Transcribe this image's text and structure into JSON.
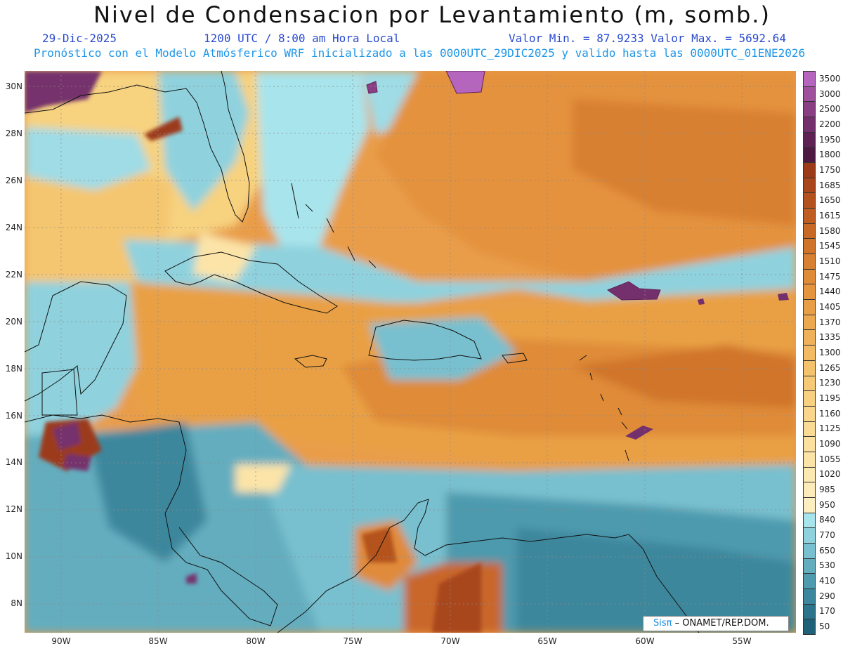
{
  "header": {
    "title": "Nivel de Condensacion por Levantamiento (m, somb.)",
    "date": "29-Dic-2025",
    "time": "1200 UTC / 8:00 am Hora Local",
    "min_max": "Valor Min. = 87.9233  Valor Max. = 5692.64",
    "model_info": "Pronóstico con el Modelo Atmósferico WRF inicializado a las 0000UTC_29DIC2025 y valido hasta las  0000UTC_01ENE2026"
  },
  "axes": {
    "lat_labels": [
      "30N",
      "28N",
      "26N",
      "24N",
      "22N",
      "20N",
      "18N",
      "16N",
      "14N",
      "12N",
      "10N",
      "8N"
    ],
    "lon_labels": [
      "90W",
      "85W",
      "80W",
      "75W",
      "70W",
      "65W",
      "60W",
      "55W"
    ]
  },
  "legend": {
    "labels": [
      "3500",
      "3000",
      "2500",
      "2200",
      "1950",
      "1800",
      "1750",
      "1685",
      "1650",
      "1615",
      "1580",
      "1545",
      "1510",
      "1475",
      "1440",
      "1405",
      "1370",
      "1335",
      "1300",
      "1265",
      "1230",
      "1195",
      "1160",
      "1125",
      "1090",
      "1055",
      "1020",
      "985",
      "950",
      "840",
      "770",
      "650",
      "530",
      "410",
      "290",
      "170",
      "50"
    ],
    "colors": [
      "#b565bd",
      "#a0519d",
      "#8a3f85",
      "#74306c",
      "#5f2255",
      "#4e1a44",
      "#9c3b1a",
      "#a9461c",
      "#b4521f",
      "#bf5d22",
      "#c86926",
      "#d0742b",
      "#d88031",
      "#df8b37",
      "#e4953e",
      "#e89e46",
      "#eca84f",
      "#efb159",
      "#f2ba63",
      "#f4c26d",
      "#f6c977",
      "#f8d081",
      "#f9d68b",
      "#fadb95",
      "#fbe09f",
      "#fce4a8",
      "#fce8b1",
      "#fdebb9",
      "#fdeec0",
      "#a8e4ec",
      "#8fd2de",
      "#78c0cf",
      "#63adbf",
      "#4e9aae",
      "#3c879d",
      "#2c748b",
      "#1f6179"
    ]
  },
  "credit": {
    "sis": "Sisπ",
    "rest": " – ONAMET/REP.DOM."
  }
}
